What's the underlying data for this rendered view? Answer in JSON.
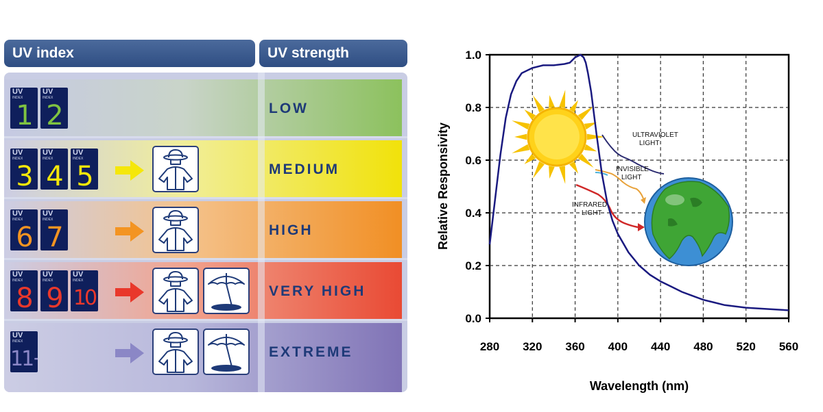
{
  "uv_table": {
    "header_index": "UV index",
    "header_strength": "UV strength",
    "badge_text": {
      "uv": "UV",
      "index": "INDEX"
    },
    "rows": [
      {
        "strength": "LOW",
        "indices": [
          "1",
          "2"
        ],
        "color": "#7fc341",
        "protection": []
      },
      {
        "strength": "MEDIUM",
        "indices": [
          "3",
          "4",
          "5"
        ],
        "color": "#f5e70a",
        "protection": [
          "clothing-hat-icon"
        ]
      },
      {
        "strength": "HIGH",
        "indices": [
          "6",
          "7"
        ],
        "color": "#f39422",
        "protection": [
          "clothing-hat-icon"
        ]
      },
      {
        "strength": "VERY HIGH",
        "indices": [
          "8",
          "9",
          "10"
        ],
        "color": "#e9382b",
        "protection": [
          "clothing-hat-icon",
          "umbrella-shade-icon"
        ]
      },
      {
        "strength": "EXTREME",
        "indices": [
          "11+"
        ],
        "color": "#8b87c6",
        "protection": [
          "clothing-hat-icon",
          "umbrella-shade-icon"
        ]
      }
    ]
  },
  "chart_data": {
    "type": "line",
    "xlabel": "Wavelength (nm)",
    "ylabel": "Relative Responsivity",
    "xlim": [
      280,
      560
    ],
    "ylim": [
      0.0,
      1.0
    ],
    "xticks": [
      "280",
      "320",
      "360",
      "400",
      "440",
      "480",
      "520",
      "560"
    ],
    "yticks": [
      "0.0",
      "0.2",
      "0.4",
      "0.6",
      "0.8",
      "1.0"
    ],
    "grid": true,
    "line_color": "#1a1a80",
    "series": [
      {
        "x": [
          280,
          285,
          290,
          295,
          300,
          305,
          310,
          320,
          330,
          340,
          350,
          355,
          360,
          365,
          368,
          370,
          372,
          375,
          380,
          385,
          390,
          395,
          400,
          410,
          420,
          430,
          440,
          450,
          460,
          470,
          480,
          490,
          500,
          520,
          540,
          560
        ],
        "y": [
          0.28,
          0.45,
          0.62,
          0.76,
          0.85,
          0.9,
          0.93,
          0.95,
          0.96,
          0.96,
          0.965,
          0.97,
          0.99,
          1.0,
          0.99,
          0.97,
          0.93,
          0.86,
          0.7,
          0.55,
          0.44,
          0.37,
          0.32,
          0.25,
          0.2,
          0.165,
          0.14,
          0.12,
          0.1,
          0.085,
          0.07,
          0.06,
          0.05,
          0.04,
          0.035,
          0.03
        ]
      }
    ],
    "annotations": [
      "ULTRAVIOLET",
      "LIGHT",
      "INVISIBLE",
      "LIGHT",
      "INFRARED",
      "LIGHT"
    ]
  }
}
